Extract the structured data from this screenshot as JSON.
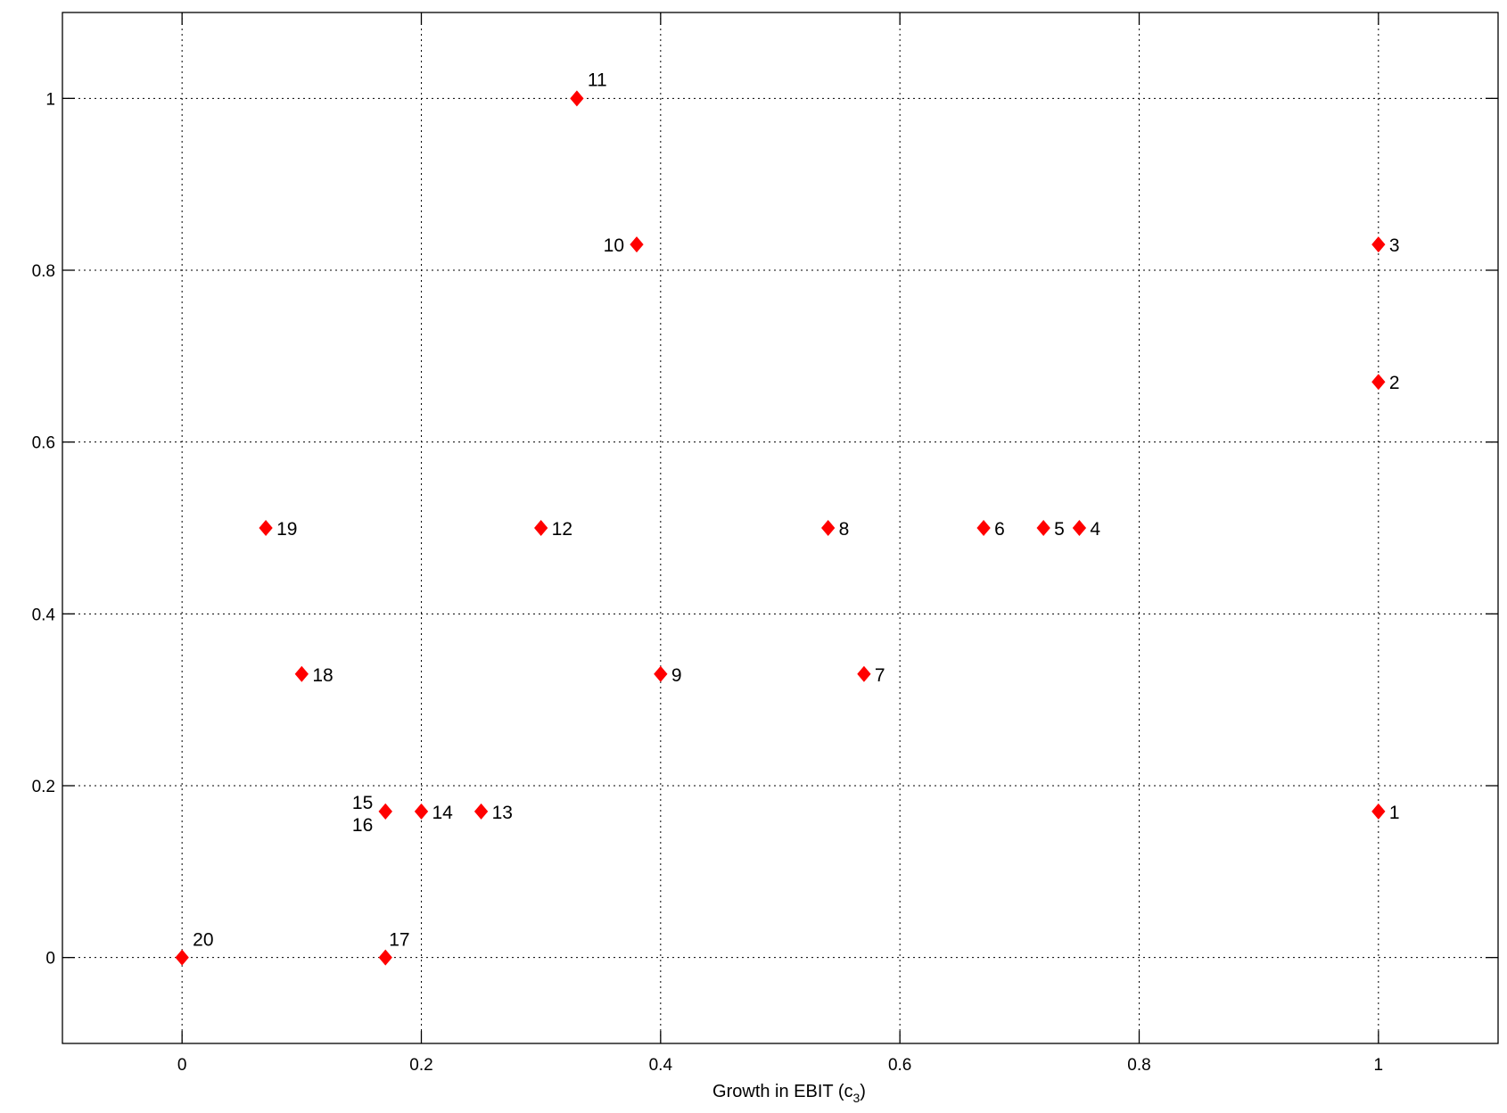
{
  "chart_data": {
    "type": "scatter",
    "xlabel": "Growth in EBIT (c",
    "xlabel_sub": "3",
    "xlabel_close": ")",
    "ylabel": "",
    "xlim": [
      -0.1,
      1.1
    ],
    "ylim": [
      -0.1,
      1.1
    ],
    "x_ticks": [
      0,
      0.2,
      0.4,
      0.6,
      0.8,
      1
    ],
    "x_tick_labels": [
      "0",
      "0.2",
      "0.4",
      "0.6",
      "0.8",
      "1"
    ],
    "y_ticks": [
      0,
      0.2,
      0.4,
      0.6,
      0.8,
      1
    ],
    "y_tick_labels": [
      "0",
      "0.2",
      "0.4",
      "0.6",
      "0.8",
      "1"
    ],
    "grid": true,
    "marker": "diamond",
    "marker_color": "#ff0000",
    "points": [
      {
        "label": "1",
        "x": 1.0,
        "y": 0.17
      },
      {
        "label": "2",
        "x": 1.0,
        "y": 0.67
      },
      {
        "label": "3",
        "x": 1.0,
        "y": 0.83
      },
      {
        "label": "4",
        "x": 0.75,
        "y": 0.5
      },
      {
        "label": "5",
        "x": 0.72,
        "y": 0.5
      },
      {
        "label": "6",
        "x": 0.67,
        "y": 0.5
      },
      {
        "label": "7",
        "x": 0.57,
        "y": 0.33
      },
      {
        "label": "8",
        "x": 0.54,
        "y": 0.5
      },
      {
        "label": "9",
        "x": 0.4,
        "y": 0.33
      },
      {
        "label": "10",
        "x": 0.38,
        "y": 0.83
      },
      {
        "label": "11",
        "x": 0.33,
        "y": 1.0
      },
      {
        "label": "12",
        "x": 0.3,
        "y": 0.5
      },
      {
        "label": "13",
        "x": 0.25,
        "y": 0.17
      },
      {
        "label": "14",
        "x": 0.2,
        "y": 0.17
      },
      {
        "label": "15",
        "x": 0.17,
        "y": 0.17
      },
      {
        "label": "16",
        "x": 0.17,
        "y": 0.17
      },
      {
        "label": "17",
        "x": 0.17,
        "y": 0.0
      },
      {
        "label": "18",
        "x": 0.1,
        "y": 0.33
      },
      {
        "label": "19",
        "x": 0.07,
        "y": 0.5
      },
      {
        "label": "20",
        "x": 0.0,
        "y": 0.0
      }
    ]
  }
}
